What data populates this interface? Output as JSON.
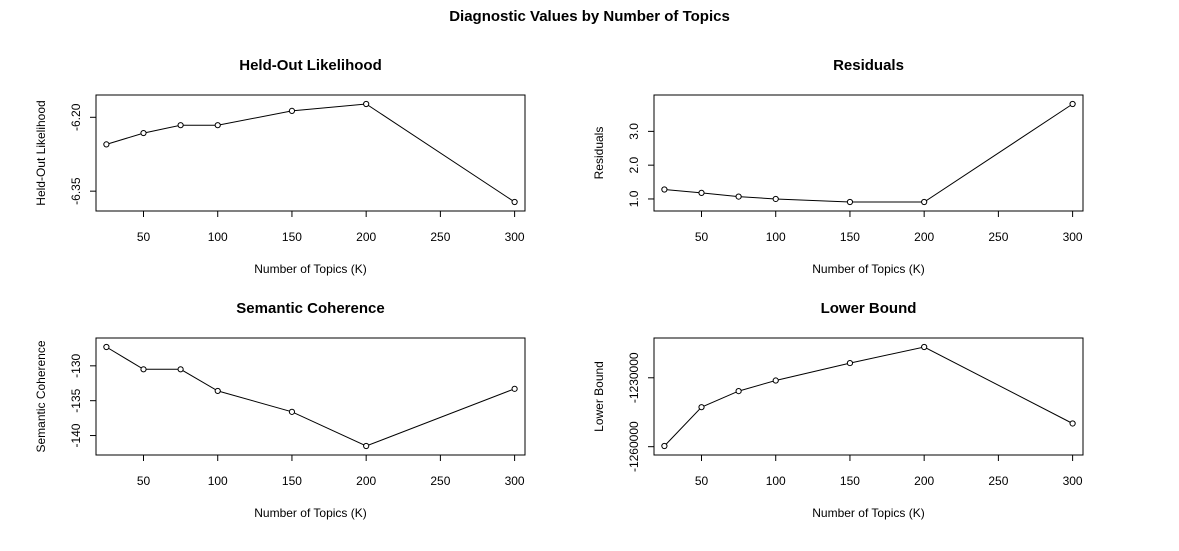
{
  "title": "Diagnostic Values by Number of Topics",
  "chart_data": [
    {
      "type": "line",
      "title": "Held-Out Likelihood",
      "xlabel": "Number of Topics (K)",
      "ylabel": "Held-Out Likelihood",
      "x": [
        25,
        50,
        75,
        100,
        150,
        200,
        300
      ],
      "values": [
        -6.255,
        -6.232,
        -6.216,
        -6.216,
        -6.187,
        -6.173,
        -6.372
      ],
      "xticks": [
        "50",
        "100",
        "150",
        "200",
        "250",
        "300"
      ],
      "yticks": [
        "-6.35",
        "-6.20"
      ],
      "xlim": [
        18,
        307
      ],
      "ylim": [
        -6.372,
        -6.173
      ],
      "grid": false,
      "markers": "open-circle"
    },
    {
      "type": "line",
      "title": "Residuals",
      "xlabel": "Number of Topics (K)",
      "ylabel": "Residuals",
      "x": [
        25,
        50,
        75,
        100,
        150,
        200,
        300
      ],
      "values": [
        1.28,
        1.18,
        1.07,
        1.0,
        0.91,
        0.91,
        3.81
      ],
      "xticks": [
        "50",
        "100",
        "150",
        "200",
        "250",
        "300"
      ],
      "yticks": [
        "1.0",
        "2.0",
        "3.0"
      ],
      "xlim": [
        18,
        307
      ],
      "ylim": [
        0.91,
        3.81
      ],
      "grid": false,
      "markers": "open-circle"
    },
    {
      "type": "line",
      "title": "Semantic Coherence",
      "xlabel": "Number of Topics (K)",
      "ylabel": "Semantic Coherence",
      "x": [
        25,
        50,
        75,
        100,
        150,
        200,
        300
      ],
      "values": [
        -127.3,
        -130.5,
        -130.5,
        -133.6,
        -136.6,
        -141.5,
        -133.3
      ],
      "xticks": [
        "50",
        "100",
        "150",
        "200",
        "250",
        "300"
      ],
      "yticks": [
        "-140",
        "-135",
        "-130"
      ],
      "xlim": [
        18,
        307
      ],
      "ylim": [
        -141.5,
        -127.3
      ],
      "grid": false,
      "markers": "open-circle"
    },
    {
      "type": "line",
      "title": "Lower Bound",
      "xlabel": "Number of Topics (K)",
      "ylabel": "Lower Bound",
      "x": [
        25,
        50,
        75,
        100,
        150,
        200,
        300
      ],
      "values": [
        -1259700,
        -1242800,
        -1235800,
        -1231200,
        -1223600,
        -1216600,
        -1249900
      ],
      "xticks": [
        "50",
        "100",
        "150",
        "200",
        "250",
        "300"
      ],
      "yticks": [
        "-1260000",
        "-1230000"
      ],
      "xlim": [
        18,
        307
      ],
      "ylim": [
        -1259700,
        -1216600
      ],
      "grid": false,
      "markers": "open-circle"
    }
  ]
}
